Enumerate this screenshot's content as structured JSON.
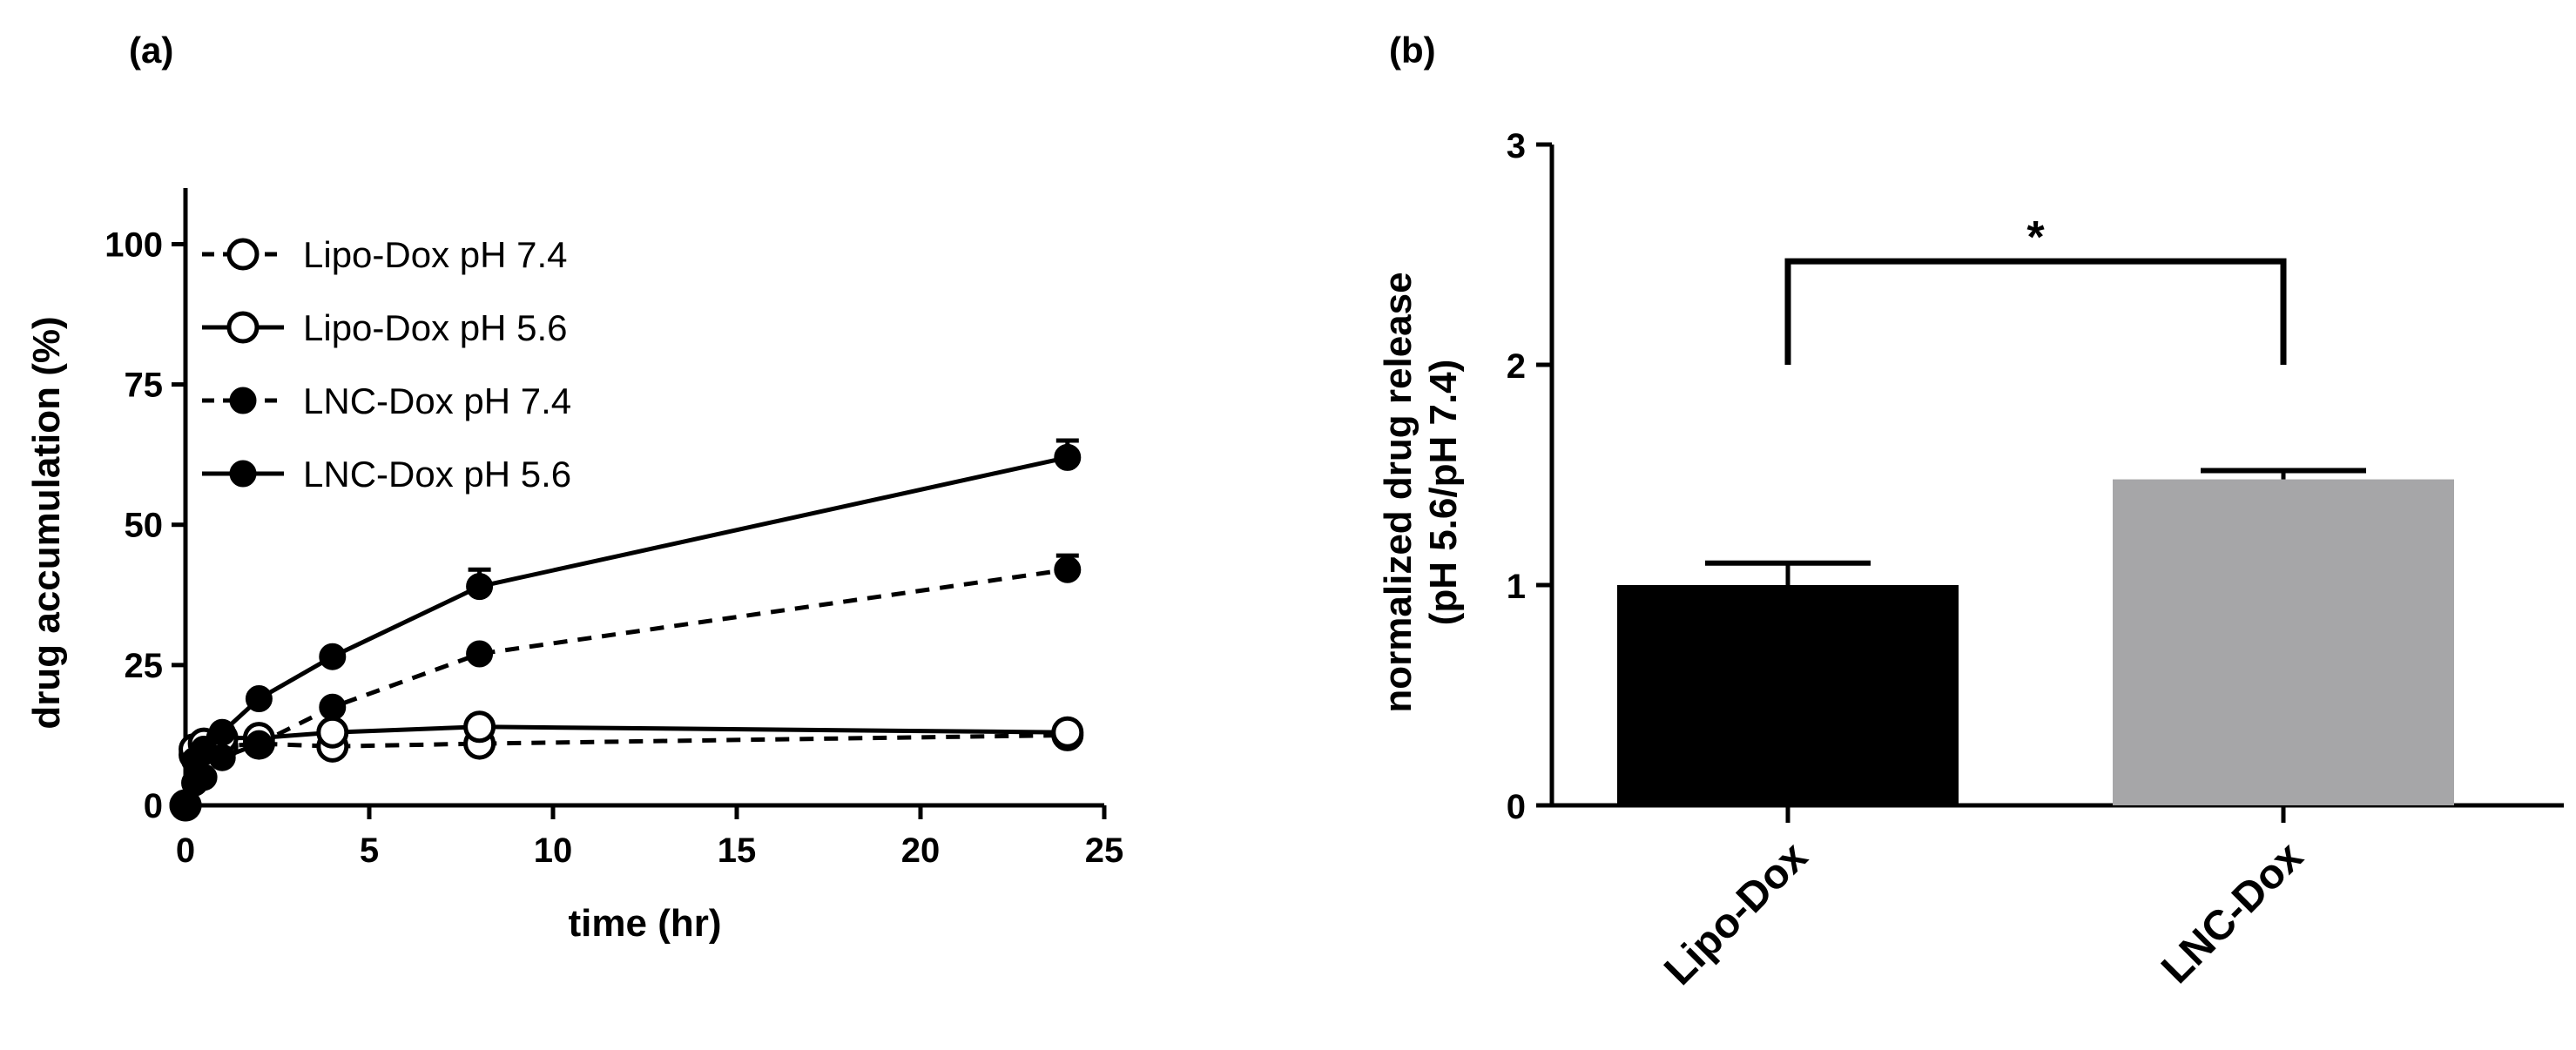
{
  "panels": [
    {
      "label": "(a)"
    },
    {
      "label": "(b)"
    }
  ],
  "colors": {
    "axis": "#000000",
    "series": "#000000",
    "lipo_bar": "#000000",
    "lnc_bar": "#a6a6a8",
    "background": "#ffffff"
  },
  "chart_data": [
    {
      "type": "line",
      "title": "",
      "xlabel": "time (hr)",
      "ylabel": "drug accumulation (%)",
      "xlim": [
        0,
        25
      ],
      "ylim": [
        0,
        110
      ],
      "xticks": [
        0,
        5,
        10,
        15,
        20,
        25
      ],
      "yticks": [
        0,
        25,
        50,
        75,
        100
      ],
      "grid": false,
      "legend_position": "top-left",
      "series": [
        {
          "name": "Lipo-Dox pH 7.4",
          "marker": "open-circle",
          "line": "dashed",
          "x": [
            0,
            0.25,
            0.5,
            1,
            2,
            4,
            8,
            24
          ],
          "y": [
            0,
            9,
            10,
            10.5,
            11,
            10.5,
            11,
            12.5
          ],
          "err": [
            0,
            0,
            0,
            0,
            0,
            0,
            0,
            0
          ]
        },
        {
          "name": "Lipo-Dox pH 5.6",
          "marker": "open-circle",
          "line": "solid",
          "x": [
            0,
            0.25,
            0.5,
            1,
            2,
            4,
            8,
            24
          ],
          "y": [
            0,
            10,
            11,
            12,
            12,
            13,
            14,
            13
          ],
          "err": [
            0,
            0,
            0,
            0,
            0,
            0,
            0,
            0
          ]
        },
        {
          "name": "LNC-Dox pH 7.4",
          "marker": "filled-circle",
          "line": "dashed",
          "x": [
            0,
            0.25,
            0.5,
            1,
            2,
            4,
            8,
            24
          ],
          "y": [
            0,
            4,
            5,
            8.5,
            11,
            17.5,
            27,
            42
          ],
          "err": [
            0,
            0,
            0,
            0,
            0,
            0,
            0,
            2.5
          ]
        },
        {
          "name": "LNC-Dox pH 5.6",
          "marker": "filled-circle",
          "line": "solid",
          "x": [
            0,
            0.25,
            0.5,
            1,
            2,
            4,
            8,
            24
          ],
          "y": [
            0,
            8,
            10,
            13,
            19,
            26.5,
            39,
            62
          ],
          "err": [
            0,
            0,
            0,
            0,
            0,
            0,
            3,
            3
          ]
        }
      ]
    },
    {
      "type": "bar",
      "title": "",
      "xlabel": "",
      "ylabel": [
        "normalized drug release",
        "(pH 5.6/pH 7.4)"
      ],
      "ylim": [
        0,
        3
      ],
      "yticks": [
        0,
        1,
        2,
        3
      ],
      "grid": false,
      "categories": [
        "Lipo-Dox",
        "LNC-Dox"
      ],
      "values": [
        1.0,
        1.48
      ],
      "errors": [
        0.1,
        0.04
      ],
      "bar_colors": [
        "#000000",
        "#a6a6a8"
      ],
      "significance": {
        "between": [
          "Lipo-Dox",
          "LNC-Dox"
        ],
        "label": "*",
        "level": 2.47
      }
    }
  ]
}
